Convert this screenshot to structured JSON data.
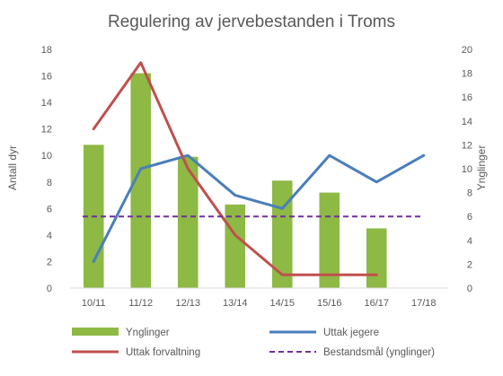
{
  "chart_data": {
    "type": "bar",
    "title": "Regulering av jervebestanden i Troms",
    "categories": [
      "10/11",
      "11/12",
      "12/13",
      "13/14",
      "14/15",
      "15/16",
      "16/17",
      "17/18"
    ],
    "ylabel": "Antall dyr",
    "y2label": "Ynglinger",
    "ylim": [
      0,
      18
    ],
    "y2lim": [
      0,
      20
    ],
    "yticks": [
      0,
      2,
      4,
      6,
      8,
      10,
      12,
      14,
      16,
      18
    ],
    "y2ticks": [
      0,
      2,
      4,
      6,
      8,
      10,
      12,
      14,
      16,
      18,
      20
    ],
    "grid": false,
    "legend_position": "bottom",
    "series": [
      {
        "name": "Ynglinger",
        "type": "bar",
        "axis": "right",
        "color": "#8DB944",
        "values": [
          12,
          18,
          11,
          7,
          9,
          8,
          5,
          null
        ]
      },
      {
        "name": "Uttak jegere",
        "type": "line",
        "axis": "left",
        "color": "#4A7EBB",
        "values": [
          2,
          9,
          10,
          7,
          6,
          10,
          8,
          10
        ]
      },
      {
        "name": "Uttak forvaltning",
        "type": "line",
        "axis": "left",
        "color": "#C0504D",
        "values": [
          12,
          17,
          9,
          4,
          1,
          1,
          1,
          null
        ]
      },
      {
        "name": "Bestandsmål (ynglinger)",
        "type": "line",
        "axis": "right",
        "dashed": true,
        "color": "#7030A0",
        "values": [
          6,
          6,
          6,
          6,
          6,
          6,
          6,
          6
        ]
      }
    ]
  }
}
